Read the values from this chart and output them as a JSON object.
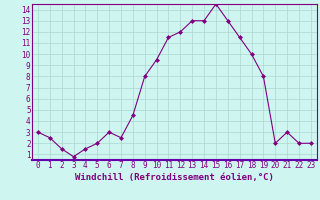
{
  "x": [
    0,
    1,
    2,
    3,
    4,
    5,
    6,
    7,
    8,
    9,
    10,
    11,
    12,
    13,
    14,
    15,
    16,
    17,
    18,
    19,
    20,
    21,
    22,
    23
  ],
  "y": [
    3.0,
    2.5,
    1.5,
    0.8,
    1.5,
    2.0,
    3.0,
    2.5,
    4.5,
    8.0,
    9.5,
    11.5,
    12.0,
    13.0,
    13.0,
    14.5,
    13.0,
    11.5,
    10.0,
    8.0,
    2.0,
    3.0,
    2.0,
    2.0
  ],
  "line_color": "#800080",
  "marker": "D",
  "marker_size": 2,
  "bg_color": "#cef5ef",
  "grid_color": "#aad8d0",
  "xlabel": "Windchill (Refroidissement éolien,°C)",
  "xlim": [
    -0.5,
    23.5
  ],
  "ylim": [
    0.5,
    14.5
  ],
  "xticks": [
    0,
    1,
    2,
    3,
    4,
    5,
    6,
    7,
    8,
    9,
    10,
    11,
    12,
    13,
    14,
    15,
    16,
    17,
    18,
    19,
    20,
    21,
    22,
    23
  ],
  "yticks": [
    1,
    2,
    3,
    4,
    5,
    6,
    7,
    8,
    9,
    10,
    11,
    12,
    13,
    14
  ],
  "tick_fontsize": 5.5,
  "xlabel_fontsize": 6.5,
  "line_color_axis": "#800080",
  "spine_color": "#800080",
  "xlabel_bg": "#7700aa"
}
